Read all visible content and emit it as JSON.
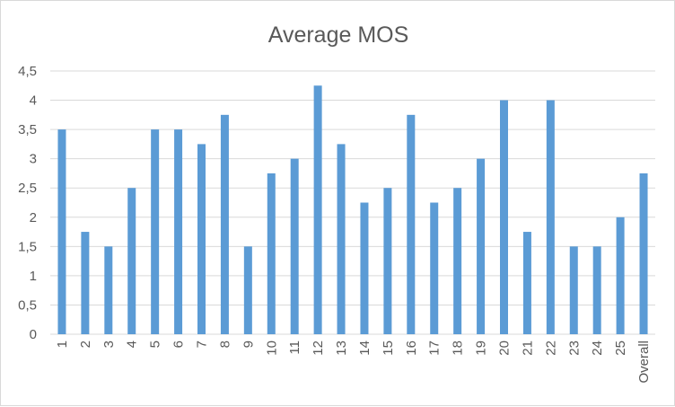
{
  "chart_data": {
    "type": "bar",
    "title": "Average MOS",
    "xlabel": "",
    "ylabel": "",
    "categories": [
      "1",
      "2",
      "3",
      "4",
      "5",
      "6",
      "7",
      "8",
      "9",
      "10",
      "11",
      "12",
      "13",
      "14",
      "15",
      "16",
      "17",
      "18",
      "19",
      "20",
      "21",
      "22",
      "23",
      "24",
      "25",
      "Overall"
    ],
    "values": [
      3.5,
      1.75,
      1.5,
      2.5,
      3.5,
      3.5,
      3.25,
      3.75,
      1.5,
      2.75,
      3,
      4.25,
      3.25,
      2.25,
      2.5,
      3.75,
      2.25,
      2.5,
      3,
      4,
      1.75,
      4,
      1.5,
      1.5,
      2,
      2.75
    ],
    "ylim": [
      0,
      4.5
    ],
    "yticks": [
      0,
      0.5,
      1,
      1.5,
      2,
      2.5,
      3,
      3.5,
      4,
      4.5
    ],
    "ytick_labels": [
      "0",
      "0,5",
      "1",
      "1,5",
      "2",
      "2,5",
      "3",
      "3,5",
      "4",
      "4,5"
    ],
    "grid": true,
    "legend": "none",
    "colors": {
      "bar": "#5b9bd5",
      "grid": "#d9d9d9",
      "text": "#595959"
    }
  }
}
